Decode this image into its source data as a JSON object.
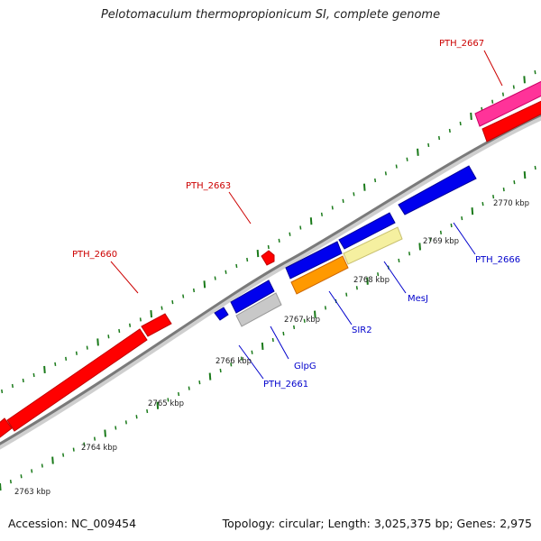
{
  "title": "Pelotomaculum thermopropionicum SI, complete genome",
  "footer": {
    "accession": "Accession: NC_009454",
    "topology": "Topology: circular; Length: 3,025,375 bp; Genes: 2,975"
  },
  "colors": {
    "backbone": "#888888",
    "tick": "#1a7a1a",
    "gene_red": "#ff0000",
    "gene_blue": "#0000ee",
    "gene_pink": "#ff3399",
    "gene_orange": "#ff9900",
    "gene_gray": "#c8c8c8",
    "gene_yellow": "#f5f0a0",
    "label_red": "#cc0000",
    "label_blue": "#0000cc"
  },
  "scale_labels": [
    "2763 kbp",
    "2764 kbp",
    "2765 kbp",
    "2766 kbp",
    "2767 kbp",
    "2768 kbp",
    "2769 kbp",
    "2770 kbp"
  ],
  "gene_labels": {
    "pth_2660": "PTH_2660",
    "pth_2663": "PTH_2663",
    "pth_2667": "PTH_2667",
    "pth_2661": "PTH_2661",
    "glpg": "GlpG",
    "sir2": "SIR2",
    "mesj": "MesJ",
    "pth_2666": "PTH_2666"
  }
}
